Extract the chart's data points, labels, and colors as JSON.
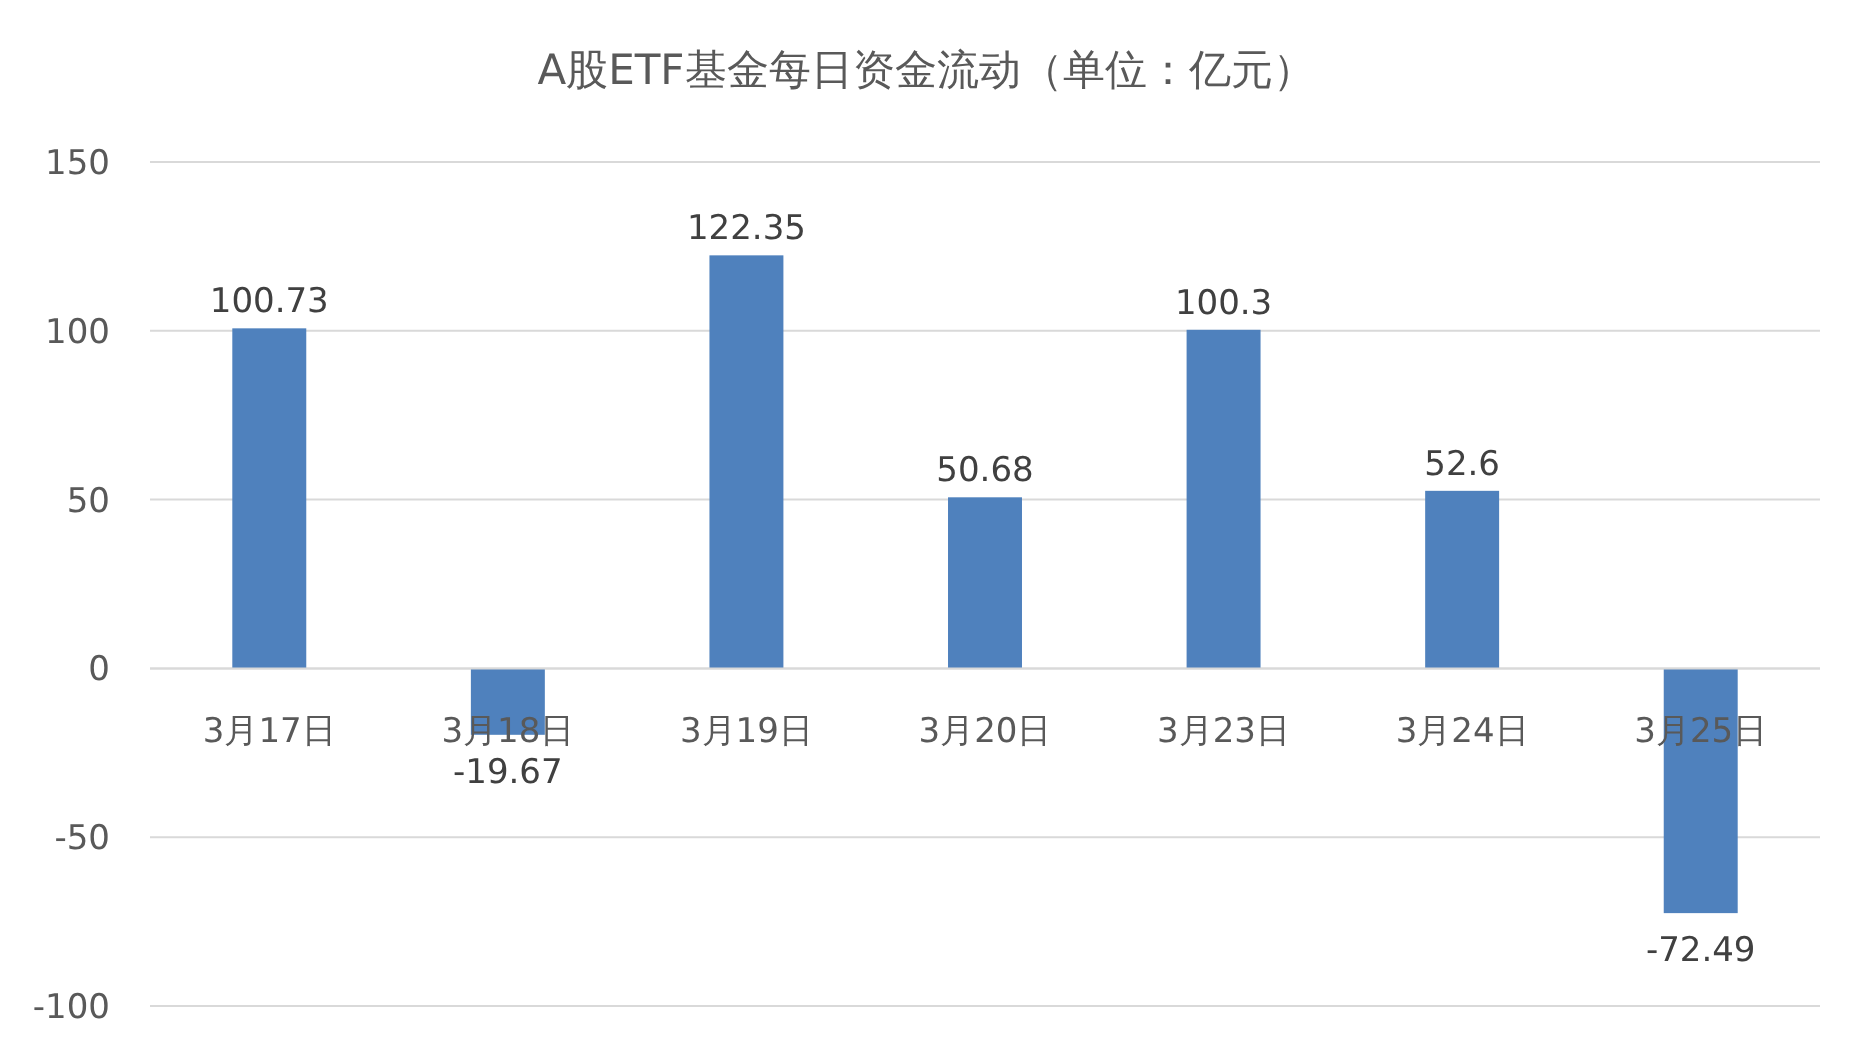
{
  "chart_data": {
    "type": "bar",
    "title": "A股ETF基金每日资金流动（单位：亿元）",
    "categories": [
      "3月17日",
      "3月18日",
      "3月19日",
      "3月20日",
      "3月23日",
      "3月24日",
      "3月25日"
    ],
    "values": [
      100.73,
      -19.67,
      122.35,
      50.68,
      100.3,
      52.6,
      -72.49
    ],
    "color": "#4f81bd",
    "ylim": [
      -100,
      150
    ],
    "yticks": [
      -100,
      -50,
      0,
      50,
      100,
      150
    ],
    "grid": "y",
    "data_labels": true
  }
}
